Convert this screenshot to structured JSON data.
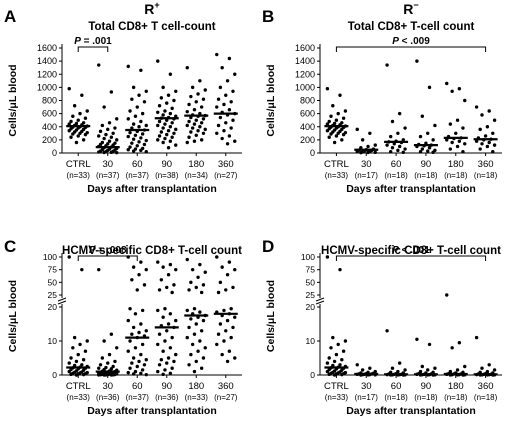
{
  "panels": [
    {
      "letter": "A",
      "title_main": "R",
      "title_sup": "+",
      "title": "Total CD8+ T cell-count",
      "ylabel": "Cells/μL blood",
      "xlabel": "Days after transplantation",
      "yticks": [
        "0",
        "200",
        "400",
        "600",
        "800",
        "1000",
        "1200",
        "1400",
        "1600"
      ],
      "categories": [
        "CTRL",
        "30",
        "60",
        "90",
        "180",
        "360"
      ],
      "n_labels": [
        "(n=33)",
        "(n=37)",
        "(n=37)",
        "(n=38)",
        "(n=34)",
        "(n=27)"
      ],
      "sig": "P = .001"
    },
    {
      "letter": "B",
      "title_main": "R",
      "title_sup": "−",
      "title": "Total CD8+ T-cell count",
      "ylabel": "Cells/μL blood",
      "xlabel": "Days after transplantation",
      "yticks": [
        "0",
        "200",
        "400",
        "600",
        "800",
        "1000",
        "1200",
        "1400",
        "1600"
      ],
      "categories": [
        "CTRL",
        "30",
        "60",
        "90",
        "180",
        "360"
      ],
      "n_labels": [
        "(n=33)",
        "(n=17)",
        "(n=18)",
        "(n=18)",
        "(n=18)",
        "(n=18)"
      ],
      "sig": "P < .009"
    },
    {
      "letter": "C",
      "title": "HCMV-specific CD8+ T-cell count",
      "ylabel": "Cells/μL blood",
      "xlabel": "Days after transplantation",
      "yticks": [
        "0",
        "10",
        "20",
        "25",
        "50",
        "75",
        "100"
      ],
      "categories": [
        "CTRL",
        "30",
        "60",
        "90",
        "180",
        "360"
      ],
      "n_labels": [
        "(n=33)",
        "(n=36)",
        "(n=37)",
        "(n=36)",
        "(n=33)",
        "(n=27)"
      ],
      "sig": "P = .008"
    },
    {
      "letter": "D",
      "title": "HCMV-specific CD8+ T-cell count",
      "ylabel": "Cells/μL blood",
      "xlabel": "Days after transplantation",
      "yticks": [
        "0",
        "10",
        "20",
        "25",
        "50",
        "75",
        "100"
      ],
      "categories": [
        "CTRL",
        "30",
        "60",
        "90",
        "180",
        "360"
      ],
      "n_labels": [
        "(n=33)",
        "(n=17)",
        "(n=18)",
        "(n=18)",
        "(n=18)",
        "(n=18)"
      ],
      "sig": "P < .001"
    }
  ],
  "chart_data": [
    {
      "type": "scatter",
      "title": "Total CD8+ T cell-count",
      "xlabel": "Days after transplantation",
      "ylabel": "Cells/μL blood",
      "ylim": [
        0,
        1600
      ],
      "categories": [
        "CTRL",
        "30",
        "60",
        "90",
        "180",
        "360"
      ],
      "medians": [
        410,
        90,
        350,
        530,
        570,
        600
      ],
      "points": [
        [
          980,
          880,
          720,
          640,
          600,
          560,
          530,
          500,
          480,
          460,
          450,
          440,
          430,
          420,
          410,
          400,
          395,
          390,
          380,
          370,
          360,
          350,
          340,
          330,
          320,
          310,
          300,
          290,
          280,
          260,
          240,
          200,
          160
        ],
        [
          1340,
          930,
          700,
          520,
          460,
          420,
          380,
          360,
          330,
          300,
          280,
          260,
          240,
          220,
          200,
          180,
          160,
          150,
          140,
          130,
          120,
          110,
          100,
          90,
          80,
          70,
          60,
          50,
          45,
          40,
          30,
          25,
          20,
          15,
          10,
          8,
          5
        ],
        [
          1320,
          1260,
          1000,
          940,
          880,
          820,
          780,
          700,
          640,
          600,
          560,
          520,
          480,
          440,
          420,
          400,
          380,
          350,
          330,
          310,
          290,
          270,
          250,
          230,
          210,
          190,
          170,
          150,
          130,
          110,
          90,
          70,
          60,
          50,
          40,
          30,
          20
        ],
        [
          1400,
          1200,
          1000,
          940,
          880,
          840,
          800,
          760,
          720,
          680,
          640,
          620,
          600,
          580,
          560,
          540,
          530,
          520,
          500,
          480,
          460,
          440,
          420,
          400,
          380,
          360,
          340,
          320,
          300,
          280,
          260,
          240,
          220,
          200,
          180,
          160,
          120,
          80
        ],
        [
          1300,
          1100,
          1000,
          960,
          900,
          860,
          820,
          780,
          740,
          700,
          660,
          630,
          600,
          580,
          570,
          560,
          540,
          520,
          500,
          480,
          460,
          440,
          420,
          400,
          380,
          360,
          340,
          320,
          300,
          270,
          240,
          200,
          180,
          160
        ],
        [
          1500,
          1440,
          1300,
          1200,
          1100,
          1000,
          940,
          880,
          820,
          780,
          740,
          700,
          660,
          620,
          600,
          580,
          540,
          500,
          460,
          420,
          380,
          340,
          300,
          260,
          220,
          180,
          140
        ]
      ],
      "significance": {
        "text": "P = .001",
        "from": "CTRL",
        "to": "30"
      }
    },
    {
      "type": "scatter",
      "title": "Total CD8+ T-cell count",
      "xlabel": "Days after transplantation",
      "ylabel": "Cells/μL blood",
      "ylim": [
        0,
        1600
      ],
      "categories": [
        "CTRL",
        "30",
        "60",
        "90",
        "180",
        "360"
      ],
      "medians": [
        410,
        50,
        170,
        120,
        230,
        210
      ],
      "points": [
        [
          980,
          880,
          720,
          640,
          600,
          560,
          530,
          500,
          480,
          460,
          450,
          440,
          430,
          420,
          410,
          400,
          395,
          390,
          380,
          370,
          360,
          350,
          340,
          330,
          320,
          310,
          300,
          290,
          280,
          260,
          240,
          200,
          160
        ],
        [
          360,
          300,
          200,
          120,
          100,
          80,
          60,
          50,
          45,
          40,
          30,
          25,
          20,
          15,
          10,
          8,
          5
        ],
        [
          1340,
          600,
          480,
          380,
          300,
          250,
          200,
          180,
          170,
          160,
          140,
          120,
          100,
          80,
          60,
          40,
          20,
          10
        ],
        [
          1400,
          1000,
          560,
          420,
          300,
          250,
          200,
          150,
          130,
          120,
          110,
          100,
          80,
          60,
          40,
          30,
          20,
          10
        ],
        [
          1060,
          980,
          940,
          800,
          500,
          440,
          380,
          300,
          250,
          230,
          220,
          200,
          180,
          160,
          140,
          100,
          60,
          20
        ],
        [
          700,
          640,
          580,
          500,
          400,
          360,
          300,
          260,
          230,
          210,
          200,
          180,
          160,
          140,
          120,
          100,
          60,
          20
        ]
      ],
      "significance": {
        "text": "P < .009",
        "from": "CTRL",
        "to": "360"
      }
    },
    {
      "type": "scatter",
      "title": "HCMV-specific CD8+ T-cell count",
      "xlabel": "Days after transplantation",
      "ylabel": "Cells/μL blood",
      "y_scale": "broken: 0-20 linear, then 25-100",
      "ylim": [
        0,
        100
      ],
      "categories": [
        "CTRL",
        "30",
        "60",
        "90",
        "180",
        "360"
      ],
      "medians": [
        2.2,
        1.0,
        11,
        14,
        17.5,
        18
      ],
      "points": [
        [
          100,
          75,
          11,
          10,
          9,
          8,
          7,
          6,
          5,
          4.5,
          4,
          3.5,
          3,
          2.8,
          2.5,
          2.3,
          2.1,
          2,
          1.8,
          1.6,
          1.4,
          1.2,
          1,
          0.9,
          0.8,
          0.7,
          0.6,
          0.5,
          0.4,
          0.3,
          0.2,
          0.1,
          0
        ],
        [
          75,
          12,
          10,
          8,
          6,
          5,
          4,
          3.5,
          3,
          2.5,
          2.2,
          2,
          1.8,
          1.6,
          1.4,
          1.2,
          1.1,
          1,
          0.9,
          0.8,
          0.7,
          0.6,
          0.5,
          0.4,
          0.35,
          0.3,
          0.25,
          0.2,
          0.15,
          0.1,
          0.08,
          0.05,
          0.03,
          0.02,
          0.01,
          0
        ],
        [
          100,
          90,
          80,
          75,
          65,
          55,
          45,
          35,
          19.5,
          19,
          18,
          16,
          15,
          14,
          13,
          12.5,
          12,
          11.5,
          11,
          10,
          9,
          8,
          7,
          6,
          5,
          4.5,
          4,
          3.5,
          3,
          2.5,
          2,
          1.5,
          1,
          0.7,
          0.5,
          0.3,
          0.1
        ],
        [
          90,
          85,
          80,
          75,
          65,
          55,
          45,
          40,
          35,
          30,
          19.5,
          19,
          18,
          17,
          16,
          15,
          14.5,
          14,
          13,
          12,
          11,
          10,
          9,
          8,
          7,
          6,
          5,
          4.5,
          4,
          3.5,
          3,
          2,
          1.5,
          1,
          0.5,
          0.2
        ],
        [
          95,
          85,
          75,
          70,
          60,
          50,
          45,
          40,
          35,
          30,
          19.5,
          19,
          18.5,
          18,
          17.5,
          17,
          16.5,
          16,
          15,
          14,
          13,
          12,
          11,
          10,
          9,
          8,
          7,
          6,
          5,
          4,
          3,
          2,
          1
        ],
        [
          100,
          90,
          80,
          75,
          65,
          50,
          40,
          35,
          30,
          19.5,
          19,
          18.5,
          18,
          17.5,
          17,
          16,
          15,
          14,
          13,
          12,
          11,
          10,
          9,
          7,
          6,
          5,
          4
        ]
      ],
      "significance": {
        "text": "P = .008",
        "from": "CTRL",
        "to": "60"
      }
    },
    {
      "type": "scatter",
      "title": "HCMV-specific CD8+ T-cell count",
      "xlabel": "Days after transplantation",
      "ylabel": "Cells/μL blood",
      "y_scale": "broken: 0-20 linear, then 25-100",
      "ylim": [
        0,
        100
      ],
      "categories": [
        "CTRL",
        "30",
        "60",
        "90",
        "180",
        "360"
      ],
      "medians": [
        2.2,
        0.3,
        0.2,
        0.2,
        0.3,
        0.2
      ],
      "points": [
        [
          100,
          75,
          11,
          10,
          9,
          8,
          7,
          6,
          5,
          4.5,
          4,
          3.5,
          3,
          2.8,
          2.5,
          2.3,
          2.1,
          2,
          1.8,
          1.6,
          1.4,
          1.2,
          1,
          0.9,
          0.8,
          0.7,
          0.6,
          0.5,
          0.4,
          0.3,
          0.2,
          0.1,
          0
        ],
        [
          3,
          2,
          1.5,
          1,
          0.8,
          0.6,
          0.5,
          0.4,
          0.3,
          0.3,
          0.2,
          0.2,
          0.1,
          0.1,
          0.05,
          0.02,
          0
        ],
        [
          13,
          3.5,
          2,
          1.5,
          1,
          0.8,
          0.6,
          0.4,
          0.3,
          0.2,
          0.2,
          0.1,
          0.1,
          0.05,
          0.05,
          0.02,
          0.01,
          0
        ],
        [
          10.5,
          9,
          2.5,
          2,
          1.5,
          1,
          0.8,
          0.6,
          0.4,
          0.3,
          0.2,
          0.2,
          0.1,
          0.1,
          0.05,
          0.02,
          0.01,
          0
        ],
        [
          25,
          9.5,
          8,
          2.5,
          1.5,
          1,
          0.8,
          0.6,
          0.4,
          0.3,
          0.3,
          0.2,
          0.1,
          0.1,
          0.05,
          0.02,
          0.01,
          0
        ],
        [
          11,
          3,
          2,
          1.5,
          1,
          0.8,
          0.6,
          0.4,
          0.3,
          0.2,
          0.2,
          0.1,
          0.1,
          0.05,
          0.05,
          0.02,
          0.01,
          0
        ]
      ],
      "significance": {
        "text": "P < .001",
        "from": "CTRL",
        "to": "360"
      }
    }
  ]
}
